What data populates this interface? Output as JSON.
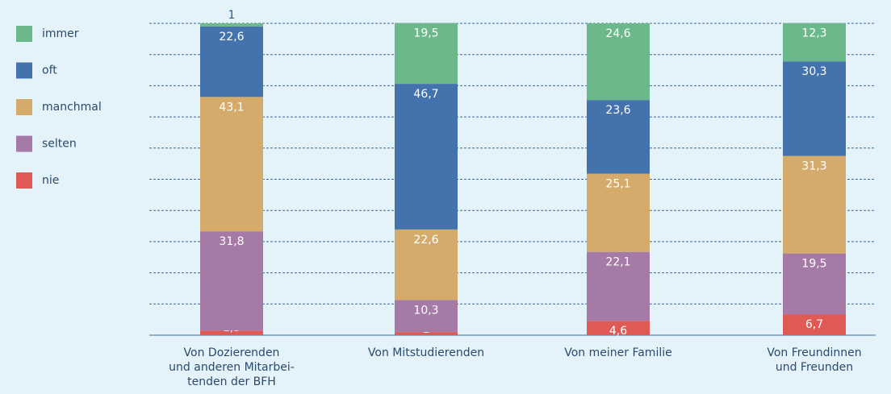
{
  "chart_data": {
    "type": "stacked_bar",
    "categories": [
      [
        "Von Dozierenden",
        "und anderen Mitarbei-",
        "tenden der BFH"
      ],
      [
        "Von Mitstudierenden"
      ],
      [
        "Von meiner Familie"
      ],
      [
        "Von Freundinnen",
        "und Freunden"
      ]
    ],
    "series": [
      {
        "name": "nie",
        "color": "#e05a55",
        "values": [
          1.5,
          1,
          4.6,
          6.7
        ],
        "value_labels": [
          "1,5",
          "1",
          "4,6",
          "6,7"
        ]
      },
      {
        "name": "selten",
        "color": "#a57aa6",
        "values": [
          31.8,
          10.3,
          22.1,
          19.5
        ],
        "value_labels": [
          "31,8",
          "10,3",
          "22,1",
          "19,5"
        ]
      },
      {
        "name": "manchmal",
        "color": "#d4ab6a",
        "values": [
          43.1,
          22.6,
          25.1,
          31.3
        ],
        "value_labels": [
          "43,1",
          "22,6",
          "25,1",
          "31,3"
        ]
      },
      {
        "name": "oft",
        "color": "#4472ad",
        "values": [
          22.6,
          46.7,
          23.6,
          30.3
        ],
        "value_labels": [
          "22,6",
          "46,7",
          "23,6",
          "30,3"
        ]
      },
      {
        "name": "immer",
        "color": "#6bb88a",
        "values": [
          1,
          19.5,
          24.6,
          12.3
        ],
        "value_labels": [
          "1",
          "19,5",
          "24,6",
          "12,3"
        ]
      }
    ],
    "ylim": [
      0,
      100
    ],
    "yticks": [
      0,
      10,
      20,
      30,
      40,
      50,
      60,
      70,
      80,
      90,
      100
    ],
    "grid": true,
    "legend": "left"
  }
}
